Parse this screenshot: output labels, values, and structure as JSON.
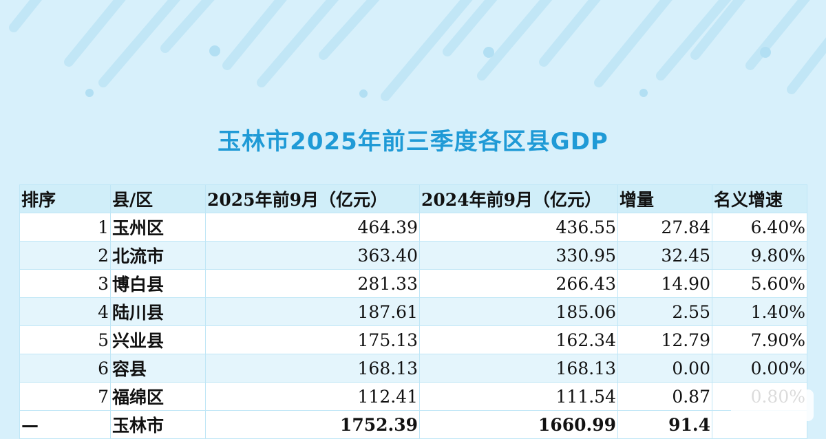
{
  "title": "玉林市2025年前三季度各区县GDP",
  "columns": [
    "排序",
    "县/区",
    "2025年前9月（亿元）",
    "2024年前9月（亿元）",
    "增量",
    "名义增速"
  ],
  "rows": [
    {
      "rank": "1",
      "name": "玉州区",
      "gdp2025": "464.39",
      "gdp2024": "436.55",
      "increase": "27.84",
      "growth": "6.40%"
    },
    {
      "rank": "2",
      "name": "北流市",
      "gdp2025": "363.40",
      "gdp2024": "330.95",
      "increase": "32.45",
      "growth": "9.80%"
    },
    {
      "rank": "3",
      "name": "博白县",
      "gdp2025": "281.33",
      "gdp2024": "266.43",
      "increase": "14.90",
      "growth": "5.60%"
    },
    {
      "rank": "4",
      "name": "陆川县",
      "gdp2025": "187.61",
      "gdp2024": "185.06",
      "increase": "2.55",
      "growth": "1.40%"
    },
    {
      "rank": "5",
      "name": "兴业县",
      "gdp2025": "175.13",
      "gdp2024": "162.34",
      "increase": "12.79",
      "growth": "7.90%"
    },
    {
      "rank": "6",
      "name": "容县",
      "gdp2025": "168.13",
      "gdp2024": "168.13",
      "increase": "0.00",
      "growth": "0.00%"
    },
    {
      "rank": "7",
      "name": "福绵区",
      "gdp2025": "112.41",
      "gdp2024": "111.54",
      "increase": "0.87",
      "growth": "0.80%"
    }
  ],
  "total": {
    "rank": "—",
    "name": "玉林市",
    "gdp2025": "1752.39",
    "gdp2024": "1660.99",
    "increase": "91.4",
    "growth": ""
  },
  "colors": {
    "title": "#1f9ad6",
    "background": "#d7f0fb",
    "stripe": "#e4f5fc",
    "decor": "#b8e2f5"
  }
}
